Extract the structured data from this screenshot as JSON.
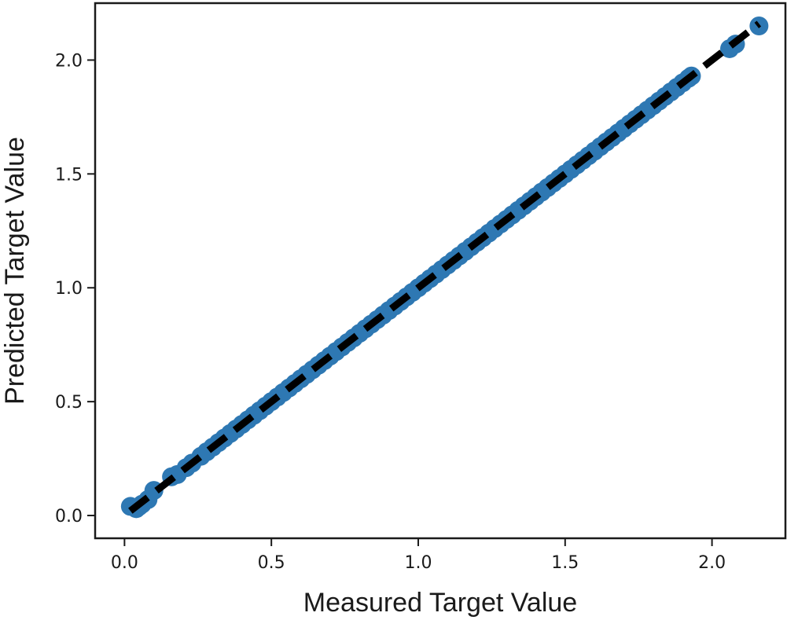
{
  "chart_data": {
    "type": "scatter",
    "title": "",
    "xlabel": "Measured Target Value",
    "ylabel": "Predicted Target Value",
    "xlim": [
      -0.1,
      2.25
    ],
    "ylim": [
      -0.1,
      2.25
    ],
    "x_ticks": [
      0.0,
      0.5,
      1.0,
      1.5,
      2.0
    ],
    "y_ticks": [
      0.0,
      0.5,
      1.0,
      1.5,
      2.0
    ],
    "x_tick_labels": [
      "0.0",
      "0.5",
      "1.0",
      "1.5",
      "2.0"
    ],
    "y_tick_labels": [
      "0.0",
      "0.5",
      "1.0",
      "1.5",
      "2.0"
    ],
    "grid": false,
    "legend": "none",
    "series": [
      {
        "kind": "scatter",
        "color": "#2e78b3",
        "points": [
          [
            0.02,
            0.04
          ],
          [
            0.04,
            0.03
          ],
          [
            0.05,
            0.04
          ],
          [
            0.06,
            0.05
          ],
          [
            0.08,
            0.07
          ],
          [
            0.1,
            0.11
          ],
          [
            0.16,
            0.17
          ],
          [
            0.18,
            0.18
          ],
          [
            0.21,
            0.21
          ],
          [
            0.23,
            0.23
          ],
          [
            0.26,
            0.26
          ],
          [
            0.28,
            0.28
          ],
          [
            0.3,
            0.3
          ],
          [
            0.32,
            0.32
          ],
          [
            0.34,
            0.34
          ],
          [
            0.36,
            0.36
          ],
          [
            0.38,
            0.38
          ],
          [
            0.4,
            0.4
          ],
          [
            0.42,
            0.42
          ],
          [
            0.44,
            0.44
          ],
          [
            0.46,
            0.46
          ],
          [
            0.48,
            0.48
          ],
          [
            0.5,
            0.5
          ],
          [
            0.52,
            0.52
          ],
          [
            0.54,
            0.54
          ],
          [
            0.56,
            0.56
          ],
          [
            0.58,
            0.58
          ],
          [
            0.6,
            0.6
          ],
          [
            0.62,
            0.62
          ],
          [
            0.64,
            0.64
          ],
          [
            0.66,
            0.66
          ],
          [
            0.68,
            0.68
          ],
          [
            0.7,
            0.7
          ],
          [
            0.72,
            0.72
          ],
          [
            0.74,
            0.74
          ],
          [
            0.76,
            0.76
          ],
          [
            0.78,
            0.78
          ],
          [
            0.8,
            0.8
          ],
          [
            0.82,
            0.82
          ],
          [
            0.84,
            0.84
          ],
          [
            0.86,
            0.86
          ],
          [
            0.88,
            0.88
          ],
          [
            0.9,
            0.9
          ],
          [
            0.92,
            0.92
          ],
          [
            0.94,
            0.94
          ],
          [
            0.96,
            0.96
          ],
          [
            0.98,
            0.98
          ],
          [
            1.0,
            1.0
          ],
          [
            1.02,
            1.02
          ],
          [
            1.04,
            1.04
          ],
          [
            1.06,
            1.06
          ],
          [
            1.08,
            1.08
          ],
          [
            1.1,
            1.1
          ],
          [
            1.12,
            1.12
          ],
          [
            1.14,
            1.14
          ],
          [
            1.16,
            1.16
          ],
          [
            1.18,
            1.18
          ],
          [
            1.2,
            1.2
          ],
          [
            1.22,
            1.22
          ],
          [
            1.24,
            1.24
          ],
          [
            1.26,
            1.26
          ],
          [
            1.28,
            1.28
          ],
          [
            1.3,
            1.3
          ],
          [
            1.32,
            1.32
          ],
          [
            1.34,
            1.34
          ],
          [
            1.36,
            1.36
          ],
          [
            1.38,
            1.38
          ],
          [
            1.4,
            1.4
          ],
          [
            1.42,
            1.42
          ],
          [
            1.44,
            1.44
          ],
          [
            1.46,
            1.46
          ],
          [
            1.48,
            1.48
          ],
          [
            1.5,
            1.5
          ],
          [
            1.52,
            1.52
          ],
          [
            1.54,
            1.54
          ],
          [
            1.56,
            1.56
          ],
          [
            1.58,
            1.58
          ],
          [
            1.6,
            1.6
          ],
          [
            1.62,
            1.62
          ],
          [
            1.64,
            1.64
          ],
          [
            1.66,
            1.66
          ],
          [
            1.68,
            1.68
          ],
          [
            1.7,
            1.7
          ],
          [
            1.72,
            1.72
          ],
          [
            1.74,
            1.74
          ],
          [
            1.76,
            1.76
          ],
          [
            1.78,
            1.78
          ],
          [
            1.8,
            1.8
          ],
          [
            1.82,
            1.82
          ],
          [
            1.84,
            1.84
          ],
          [
            1.86,
            1.86
          ],
          [
            1.88,
            1.88
          ],
          [
            1.9,
            1.9
          ],
          [
            1.92,
            1.92
          ],
          [
            1.93,
            1.93
          ],
          [
            2.06,
            2.05
          ],
          [
            2.08,
            2.07
          ],
          [
            2.16,
            2.15
          ]
        ]
      },
      {
        "kind": "line",
        "style": "dashed",
        "color": "#000000",
        "x": [
          0.02,
          2.16
        ],
        "y": [
          0.02,
          2.16
        ]
      }
    ]
  }
}
